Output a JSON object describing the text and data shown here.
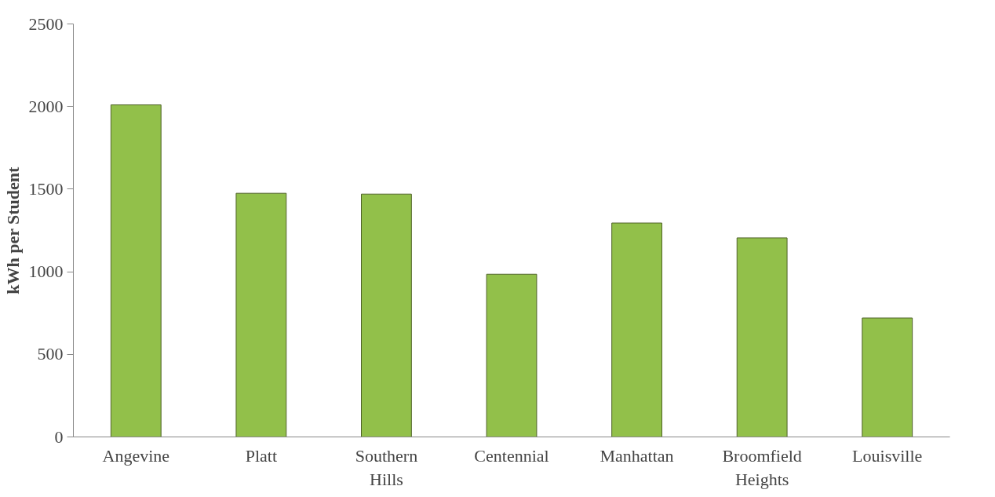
{
  "chart_data": {
    "type": "bar",
    "ylabel": "kWh per Student",
    "categories": [
      "Angevine",
      "Platt",
      "Southern Hills",
      "Centennial",
      "Manhattan",
      "Broomfield Heights",
      "Louisville"
    ],
    "values": [
      2010,
      1475,
      1470,
      985,
      1295,
      1205,
      720
    ],
    "color": "#92c04a",
    "ylim": [
      0,
      2500
    ],
    "yticks": [
      0,
      500,
      1000,
      1500,
      2000,
      2500
    ],
    "grid": false,
    "legend": false
  }
}
